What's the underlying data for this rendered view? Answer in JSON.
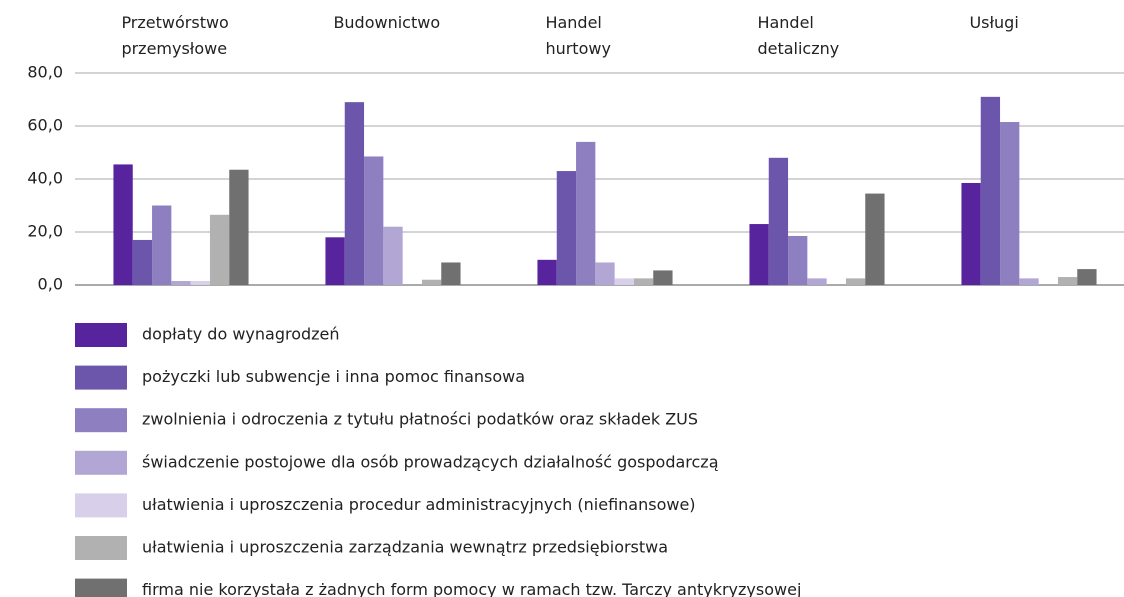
{
  "chart_data": {
    "type": "bar",
    "categories": [
      "Przetwórstwo\nprzemysłowe",
      "Budownictwo",
      "Handel\nhurtowy",
      "Handel\ndetaliczny",
      "Usługi"
    ],
    "series": [
      {
        "name": "dopłaty do wynagrodzeń",
        "color": "#58249e",
        "values": [
          45.5,
          18,
          9.5,
          23,
          38.5
        ]
      },
      {
        "name": "pożyczki lub subwencje i inna pomoc finansowa",
        "color": "#6b56ab",
        "values": [
          17,
          69,
          43,
          48,
          71
        ]
      },
      {
        "name": "zwolnienia i odroczenia z tytułu płatności podatków oraz składek ZUS",
        "color": "#8d7fc0",
        "values": [
          30,
          48.5,
          54,
          18.5,
          61.5
        ]
      },
      {
        "name": "świadczenie postojowe dla osób prowadzących działalność gospodarczą",
        "color": "#b2a6d4",
        "values": [
          1.5,
          22,
          8.5,
          2.5,
          2.5
        ]
      },
      {
        "name": "ułatwienia i uproszczenia procedur administracyjnych (niefinansowe)",
        "color": "#d8d0ea",
        "values": [
          1.5,
          0,
          2.5,
          0,
          0
        ]
      },
      {
        "name": "ułatwienia i uproszczenia zarządzania wewnątrz przedsiębiorstwa",
        "color": "#b1b1b1",
        "values": [
          26.5,
          2,
          2.5,
          2.5,
          3
        ]
      },
      {
        "name": "firma nie korzystała z żadnych form pomocy w ramach tzw. Tarczy antykryzysowej",
        "color": "#707070",
        "values": [
          43.5,
          8.5,
          5.5,
          34.5,
          6
        ]
      }
    ],
    "ylim": [
      0,
      80
    ],
    "yticks": [
      {
        "value": 0,
        "label": "0,0"
      },
      {
        "value": 20,
        "label": "20,0"
      },
      {
        "value": 40,
        "label": "40,0"
      },
      {
        "value": 60,
        "label": "60,0"
      },
      {
        "value": 80,
        "label": "80,0"
      }
    ],
    "grid": true
  }
}
